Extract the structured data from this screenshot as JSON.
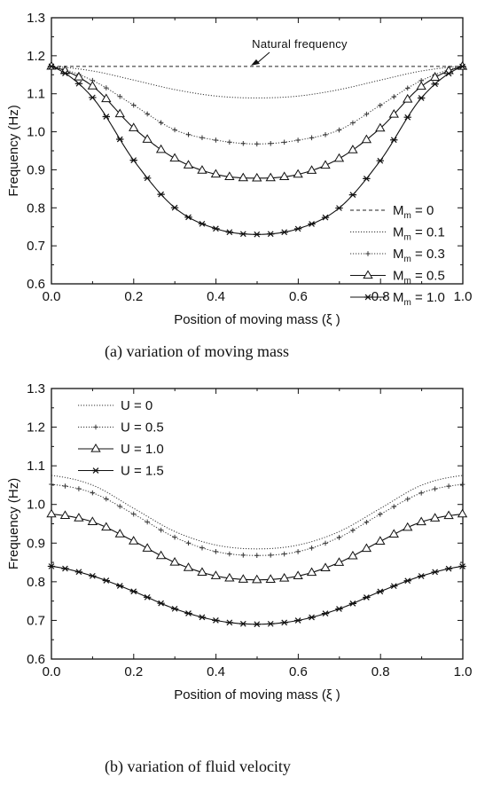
{
  "chart_data": [
    {
      "type": "line",
      "caption": "(a)  variation of moving mass",
      "xlabel": "Position  of  moving  mass (ξ )",
      "ylabel": "Frequency (Hz)",
      "xlim": [
        0.0,
        1.0
      ],
      "ylim": [
        0.6,
        1.3
      ],
      "xticks": [
        "0.0",
        "0.2",
        "0.4",
        "0.6",
        "0.8",
        "1.0"
      ],
      "yticks": [
        "0.6",
        "0.7",
        "0.8",
        "0.9",
        "1.0",
        "1.1",
        "1.2",
        "1.3"
      ],
      "legend_position": "bottom-right",
      "annotation": "Natural  frequency",
      "x": [
        0.0,
        0.1,
        0.2,
        0.3,
        0.4,
        0.5,
        0.6,
        0.7,
        0.8,
        0.9,
        1.0
      ],
      "series": [
        {
          "name": "M_m = 0",
          "style": "dashed",
          "marker": "none",
          "values": [
            1.172,
            1.172,
            1.172,
            1.172,
            1.172,
            1.172,
            1.172,
            1.172,
            1.172,
            1.172,
            1.172
          ]
        },
        {
          "name": "M_m = 0.1",
          "style": "dotted",
          "marker": "none",
          "values": [
            1.172,
            1.16,
            1.136,
            1.111,
            1.094,
            1.089,
            1.094,
            1.111,
            1.136,
            1.16,
            1.172
          ]
        },
        {
          "name": "M_m = 0.3",
          "style": "dotted",
          "marker": "plus",
          "values": [
            1.172,
            1.135,
            1.07,
            1.005,
            0.978,
            0.968,
            0.978,
            1.005,
            1.07,
            1.135,
            1.172
          ]
        },
        {
          "name": "M_m = 0.5",
          "style": "solid",
          "marker": "triangle",
          "values": [
            1.172,
            1.12,
            1.01,
            0.93,
            0.888,
            0.878,
            0.888,
            0.93,
            1.01,
            1.12,
            1.172
          ]
        },
        {
          "name": "M_m = 1.0",
          "style": "solid",
          "marker": "asterisk",
          "values": [
            1.172,
            1.09,
            0.925,
            0.8,
            0.745,
            0.73,
            0.745,
            0.8,
            0.925,
            1.09,
            1.172
          ]
        }
      ]
    },
    {
      "type": "line",
      "caption": "(b)  variation of fluid velocity",
      "xlabel": "Position  of  moving  mass (ξ )",
      "ylabel": "Frequency (Hz)",
      "xlim": [
        0.0,
        1.0
      ],
      "ylim": [
        0.6,
        1.3
      ],
      "xticks": [
        "0.0",
        "0.2",
        "0.4",
        "0.6",
        "0.8",
        "1.0"
      ],
      "yticks": [
        "0.6",
        "0.7",
        "0.8",
        "0.9",
        "1.0",
        "1.1",
        "1.2",
        "1.3"
      ],
      "legend_position": "top-left",
      "x": [
        0.0,
        0.1,
        0.2,
        0.3,
        0.4,
        0.5,
        0.6,
        0.7,
        0.8,
        0.9,
        1.0
      ],
      "series": [
        {
          "name": "U = 0",
          "style": "dotted",
          "marker": "none",
          "values": [
            1.075,
            1.05,
            0.99,
            0.93,
            0.895,
            0.885,
            0.895,
            0.93,
            0.99,
            1.05,
            1.075
          ]
        },
        {
          "name": "U = 0.5",
          "style": "dotted",
          "marker": "plus",
          "values": [
            1.052,
            1.03,
            0.975,
            0.915,
            0.878,
            0.868,
            0.878,
            0.915,
            0.975,
            1.03,
            1.052
          ]
        },
        {
          "name": "U = 1.0",
          "style": "solid",
          "marker": "triangle",
          "values": [
            0.975,
            0.955,
            0.905,
            0.85,
            0.815,
            0.805,
            0.815,
            0.85,
            0.905,
            0.955,
            0.975
          ]
        },
        {
          "name": "U = 1.5",
          "style": "solid",
          "marker": "asterisk",
          "values": [
            0.84,
            0.815,
            0.775,
            0.73,
            0.7,
            0.69,
            0.7,
            0.73,
            0.775,
            0.815,
            0.84
          ]
        }
      ]
    }
  ]
}
